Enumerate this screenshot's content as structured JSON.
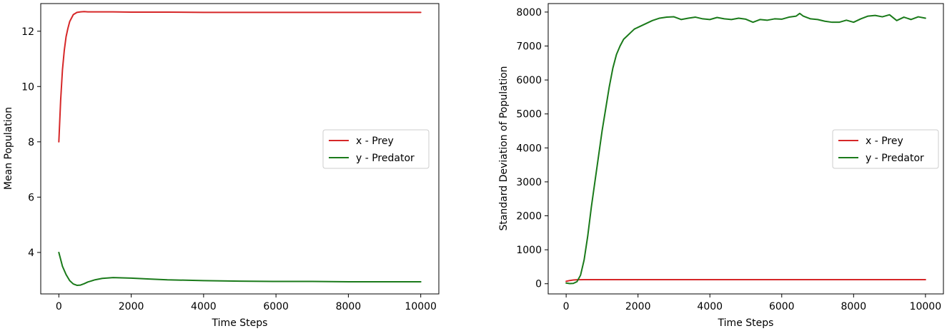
{
  "chart_data": [
    {
      "type": "line",
      "title": "",
      "xlabel": "Time Steps",
      "ylabel": "Mean Population",
      "xlim": [
        -500,
        10500
      ],
      "ylim": [
        2.5,
        13.0
      ],
      "xticks": [
        0,
        2000,
        4000,
        6000,
        8000,
        10000
      ],
      "yticks": [
        4,
        6,
        8,
        10,
        12
      ],
      "grid": false,
      "legend_position": "center-right",
      "series": [
        {
          "name": "x - Prey",
          "color": "#d62728",
          "x": [
            0,
            50,
            100,
            150,
            200,
            250,
            300,
            400,
            500,
            600,
            700,
            800,
            1000,
            1500,
            2000,
            3000,
            4000,
            5000,
            6000,
            7000,
            8000,
            9000,
            10000
          ],
          "y": [
            8.0,
            9.5,
            10.6,
            11.3,
            11.8,
            12.1,
            12.35,
            12.6,
            12.68,
            12.7,
            12.71,
            12.7,
            12.7,
            12.7,
            12.69,
            12.69,
            12.68,
            12.68,
            12.68,
            12.68,
            12.68,
            12.68,
            12.68
          ]
        },
        {
          "name": "y - Predator",
          "color": "#1a7a1a",
          "x": [
            0,
            50,
            100,
            200,
            300,
            400,
            500,
            600,
            700,
            800,
            1000,
            1200,
            1500,
            2000,
            2500,
            3000,
            4000,
            5000,
            6000,
            7000,
            8000,
            9000,
            10000
          ],
          "y": [
            4.0,
            3.75,
            3.5,
            3.2,
            2.98,
            2.86,
            2.81,
            2.82,
            2.87,
            2.93,
            3.01,
            3.06,
            3.09,
            3.07,
            3.04,
            3.01,
            2.98,
            2.96,
            2.95,
            2.95,
            2.94,
            2.94,
            2.94
          ]
        }
      ]
    },
    {
      "type": "line",
      "title": "",
      "xlabel": "Time Steps",
      "ylabel": "Standard Deviation of Population",
      "xlim": [
        -500,
        10500
      ],
      "ylim": [
        -300,
        8250
      ],
      "xticks": [
        0,
        2000,
        4000,
        6000,
        8000,
        10000
      ],
      "yticks": [
        0,
        1000,
        2000,
        3000,
        4000,
        5000,
        6000,
        7000,
        8000
      ],
      "grid": false,
      "legend_position": "center-right",
      "series": [
        {
          "name": "x - Prey",
          "color": "#d62728",
          "x": [
            0,
            100,
            200,
            300,
            500,
            1000,
            2000,
            4000,
            6000,
            8000,
            10000
          ],
          "y": [
            70,
            95,
            110,
            118,
            120,
            120,
            120,
            120,
            120,
            120,
            120
          ]
        },
        {
          "name": "y - Predator",
          "color": "#1a7a1a",
          "x": [
            0,
            100,
            200,
            300,
            400,
            500,
            600,
            700,
            800,
            900,
            1000,
            1100,
            1200,
            1300,
            1400,
            1500,
            1600,
            1700,
            1800,
            1900,
            2000,
            2200,
            2400,
            2600,
            2800,
            3000,
            3200,
            3400,
            3600,
            3800,
            4000,
            4200,
            4400,
            4600,
            4800,
            5000,
            5200,
            5400,
            5600,
            5800,
            6000,
            6200,
            6400,
            6500,
            6600,
            6800,
            7000,
            7200,
            7400,
            7600,
            7800,
            8000,
            8200,
            8400,
            8600,
            8800,
            9000,
            9200,
            9400,
            9600,
            9800,
            10000
          ],
          "y": [
            20,
            5,
            10,
            60,
            250,
            700,
            1400,
            2250,
            3000,
            3750,
            4500,
            5150,
            5800,
            6350,
            6750,
            7000,
            7200,
            7300,
            7400,
            7500,
            7550,
            7650,
            7750,
            7820,
            7850,
            7860,
            7780,
            7820,
            7850,
            7800,
            7780,
            7840,
            7800,
            7780,
            7820,
            7790,
            7700,
            7780,
            7760,
            7800,
            7790,
            7850,
            7880,
            7960,
            7880,
            7800,
            7780,
            7730,
            7700,
            7700,
            7760,
            7700,
            7800,
            7880,
            7900,
            7860,
            7920,
            7750,
            7850,
            7780,
            7860,
            7820
          ]
        }
      ]
    }
  ]
}
